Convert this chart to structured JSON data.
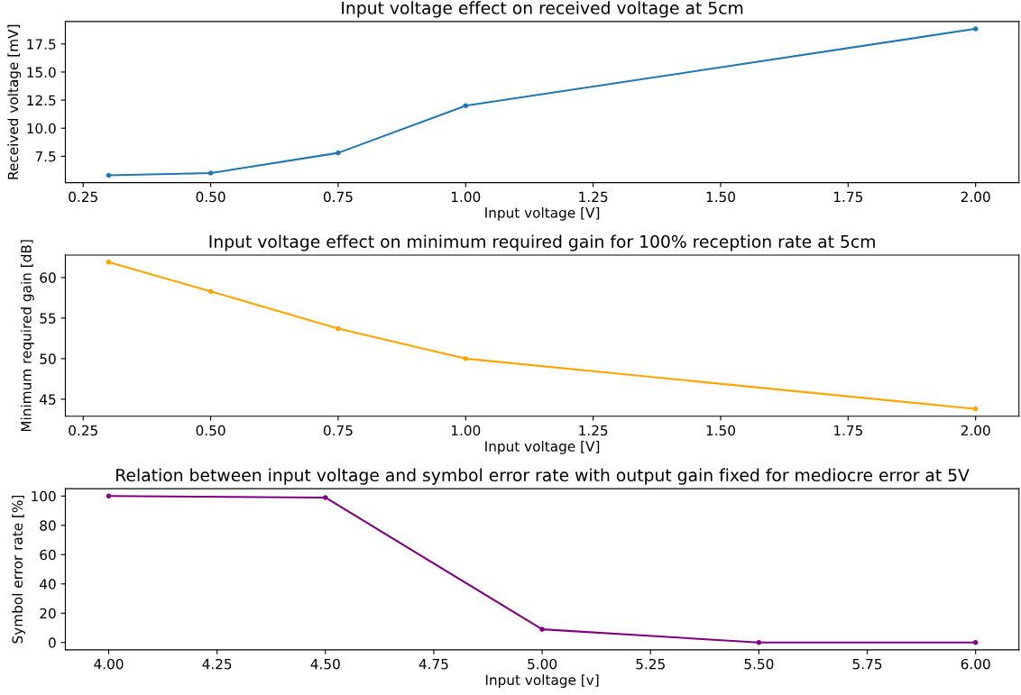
{
  "chart_data": [
    {
      "type": "line",
      "title": "Input voltage effect on received voltage at 5cm",
      "xlabel": "Input voltage [V]",
      "ylabel": "Received voltage [mV]",
      "x": [
        0.3,
        0.5,
        0.75,
        1.0,
        2.0
      ],
      "series": [
        {
          "color": "#1f77b4",
          "values": [
            5.8,
            6.0,
            7.8,
            12.0,
            18.85
          ]
        }
      ],
      "xlim": [
        0.215,
        2.085
      ],
      "xticks": [
        {
          "value": 0.25,
          "label": "0.25"
        },
        {
          "value": 0.5,
          "label": "0.50"
        },
        {
          "value": 0.75,
          "label": "0.75"
        },
        {
          "value": 1.0,
          "label": "1.00"
        },
        {
          "value": 1.25,
          "label": "1.25"
        },
        {
          "value": 1.5,
          "label": "1.50"
        },
        {
          "value": 1.75,
          "label": "1.75"
        },
        {
          "value": 2.0,
          "label": "2.00"
        }
      ],
      "ylim": [
        5.15,
        19.5
      ],
      "yticks": [
        7.5,
        {
          "value": 10,
          "label": "10.0"
        },
        12.5,
        {
          "value": 15,
          "label": "15.0"
        },
        17.5
      ],
      "marker": "circle",
      "line_style": "solid",
      "grid": false
    },
    {
      "type": "line",
      "title": "Input voltage effect on minimum required gain for 100% reception rate at 5cm",
      "xlabel": "Input voltage [V]",
      "ylabel": "Minimum required gain [dB]",
      "x": [
        0.3,
        0.5,
        0.75,
        1.0,
        2.0
      ],
      "series": [
        {
          "color": "#ffa500",
          "values": [
            61.9,
            58.3,
            53.7,
            50.0,
            43.8
          ]
        }
      ],
      "xlim": [
        0.215,
        2.085
      ],
      "xticks": [
        {
          "value": 0.25,
          "label": "0.25"
        },
        {
          "value": 0.5,
          "label": "0.50"
        },
        {
          "value": 0.75,
          "label": "0.75"
        },
        {
          "value": 1.0,
          "label": "1.00"
        },
        {
          "value": 1.25,
          "label": "1.25"
        },
        {
          "value": 1.5,
          "label": "1.50"
        },
        {
          "value": 1.75,
          "label": "1.75"
        },
        {
          "value": 2.0,
          "label": "2.00"
        }
      ],
      "ylim": [
        42.9,
        62.76
      ],
      "yticks": [
        45,
        50,
        55,
        60
      ],
      "marker": "circle",
      "line_style": "solid",
      "grid": false
    },
    {
      "type": "line",
      "title": "Relation between input voltage and symbol error rate with output gain fixed for mediocre error at 5V",
      "xlabel": "Input voltage [v]",
      "ylabel": "Symbol error rate [%]",
      "x": [
        4.0,
        4.5,
        5.0,
        5.5,
        6.0
      ],
      "series": [
        {
          "color": "#800080",
          "values": [
            100,
            99,
            9,
            0,
            0
          ]
        }
      ],
      "xlim": [
        3.9,
        6.1
      ],
      "xticks": [
        {
          "value": 4.0,
          "label": "4.00"
        },
        {
          "value": 4.25,
          "label": "4.25"
        },
        {
          "value": 4.5,
          "label": "4.50"
        },
        {
          "value": 4.75,
          "label": "4.75"
        },
        {
          "value": 5.0,
          "label": "5.00"
        },
        {
          "value": 5.25,
          "label": "5.25"
        },
        {
          "value": 5.5,
          "label": "5.50"
        },
        {
          "value": 5.75,
          "label": "5.75"
        },
        {
          "value": 6.0,
          "label": "6.00"
        }
      ],
      "ylim": [
        -5,
        105
      ],
      "yticks": [
        0,
        20,
        40,
        60,
        80,
        100
      ],
      "marker": "circle",
      "line_style": "solid",
      "grid": false
    }
  ]
}
